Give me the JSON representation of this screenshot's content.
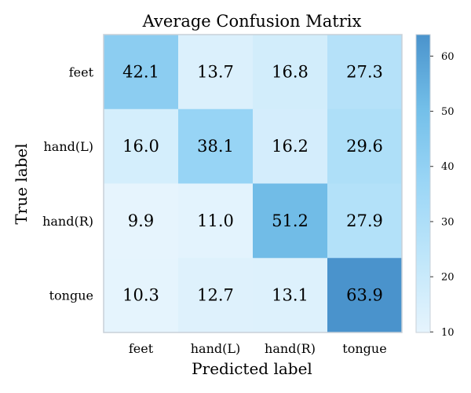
{
  "chart_data": {
    "type": "heatmap",
    "title": "Average Confusion Matrix",
    "xlabel": "Predicted label",
    "ylabel": "True label",
    "x_categories": [
      "feet",
      "hand(L)",
      "hand(R)",
      "tongue"
    ],
    "y_categories": [
      "feet",
      "hand(L)",
      "hand(R)",
      "tongue"
    ],
    "values": [
      [
        42.1,
        13.7,
        16.8,
        27.3
      ],
      [
        16.0,
        38.1,
        16.2,
        29.6
      ],
      [
        9.9,
        11.0,
        51.2,
        27.9
      ],
      [
        10.3,
        12.7,
        13.1,
        63.9
      ]
    ],
    "value_labels": [
      [
        "42.1",
        "13.7",
        "16.8",
        "27.3"
      ],
      [
        "16.0",
        "38.1",
        "16.2",
        "29.6"
      ],
      [
        "9.9",
        "11.0",
        "51.2",
        "27.9"
      ],
      [
        "10.3",
        "12.7",
        "13.1",
        "63.9"
      ]
    ],
    "colorbar": {
      "range": [
        9.9,
        63.9
      ],
      "ticks": [
        "10",
        "20",
        "30",
        "40",
        "50",
        "60"
      ],
      "colors": [
        "#e6f4fd",
        "#bfe6fa",
        "#9bd6f6",
        "#73bfe9",
        "#4a93cc"
      ]
    },
    "grid": false
  }
}
